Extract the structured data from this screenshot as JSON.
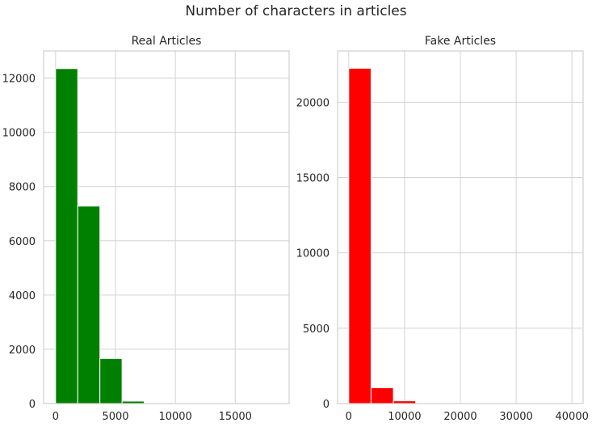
{
  "figure": {
    "suptitle": "Number of characters in articles",
    "colors": {
      "grid": "#d3d3d3",
      "spine": "#cfcfcf",
      "text": "#262626"
    }
  },
  "chart_data": [
    {
      "type": "bar",
      "subtype": "histogram",
      "title": "Real Articles",
      "color": "#008000",
      "xlabel": "",
      "ylabel": "",
      "xlim": [
        -1000,
        19500
      ],
      "ylim": [
        0,
        13000
      ],
      "xticks": [
        0,
        5000,
        10000,
        15000
      ],
      "xtick_labels": [
        "0",
        "5000",
        "10000",
        "15000"
      ],
      "yticks": [
        0,
        2000,
        4000,
        6000,
        8000,
        10000,
        12000
      ],
      "ytick_labels": [
        "0",
        "2000",
        "4000",
        "6000",
        "8000",
        "10000",
        "12000"
      ],
      "grid": true,
      "bins": [
        {
          "x0": 0,
          "x1": 1850,
          "value": 12350
        },
        {
          "x0": 1850,
          "x1": 3700,
          "value": 7280
        },
        {
          "x0": 3700,
          "x1": 5550,
          "value": 1660
        },
        {
          "x0": 5550,
          "x1": 7400,
          "value": 90
        },
        {
          "x0": 7400,
          "x1": 9250,
          "value": 15
        },
        {
          "x0": 9250,
          "x1": 11100,
          "value": 5
        },
        {
          "x0": 11100,
          "x1": 12950,
          "value": 3
        },
        {
          "x0": 12950,
          "x1": 14800,
          "value": 2
        },
        {
          "x0": 14800,
          "x1": 16650,
          "value": 1
        },
        {
          "x0": 16650,
          "x1": 18500,
          "value": 1
        }
      ]
    },
    {
      "type": "bar",
      "subtype": "histogram",
      "title": "Fake Articles",
      "color": "#ff0000",
      "xlabel": "",
      "ylabel": "",
      "xlim": [
        -2000,
        42000
      ],
      "ylim": [
        0,
        23400
      ],
      "xticks": [
        0,
        10000,
        20000,
        30000,
        40000
      ],
      "xtick_labels": [
        "0",
        "10000",
        "20000",
        "30000",
        "40000"
      ],
      "yticks": [
        0,
        5000,
        10000,
        15000,
        20000
      ],
      "ytick_labels": [
        "0",
        "5000",
        "10000",
        "15000",
        "20000"
      ],
      "grid": true,
      "bins": [
        {
          "x0": 0,
          "x1": 4000,
          "value": 22250
        },
        {
          "x0": 4000,
          "x1": 8000,
          "value": 1050
        },
        {
          "x0": 8000,
          "x1": 12000,
          "value": 180
        },
        {
          "x0": 12000,
          "x1": 16000,
          "value": 30
        },
        {
          "x0": 16000,
          "x1": 20000,
          "value": 8
        },
        {
          "x0": 20000,
          "x1": 24000,
          "value": 4
        },
        {
          "x0": 24000,
          "x1": 28000,
          "value": 2
        },
        {
          "x0": 28000,
          "x1": 32000,
          "value": 1
        },
        {
          "x0": 32000,
          "x1": 36000,
          "value": 1
        },
        {
          "x0": 36000,
          "x1": 40000,
          "value": 1
        }
      ]
    }
  ]
}
